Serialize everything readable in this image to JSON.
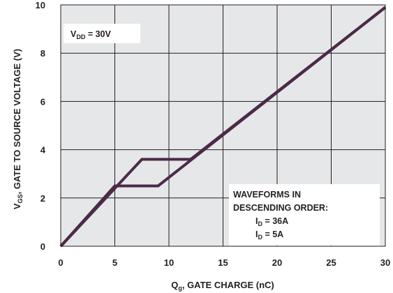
{
  "chart_data": {
    "type": "line",
    "title": "",
    "xlabel": {
      "main": "Q",
      "sub": "g",
      "rest": ", GATE CHARGE (nC)"
    },
    "ylabel": {
      "main": "V",
      "sub": "GS",
      "rest": ", GATE TO SOURCE VOLTAGE (V)"
    },
    "xlim": [
      0,
      30
    ],
    "ylim": [
      0,
      10
    ],
    "x_ticks": [
      0,
      5,
      10,
      15,
      20,
      25,
      30
    ],
    "y_ticks": [
      0,
      2,
      4,
      6,
      8,
      10
    ],
    "grid": true,
    "background": "#e6e7e8",
    "line_color": "#4b2a48",
    "series": [
      {
        "x": [
          0,
          5,
          5.5,
          9,
          30
        ],
        "y": [
          0,
          2.5,
          2.5,
          2.5,
          9.9
        ]
      },
      {
        "x": [
          0,
          7.5,
          12,
          30
        ],
        "y": [
          0,
          3.6,
          3.6,
          9.9
        ]
      }
    ],
    "annotations": {
      "vdd": {
        "main": "V",
        "sub": "DD",
        "rest": " = 30V"
      },
      "waveforms_line1": "WAVEFORMS IN",
      "waveforms_line2": "DESCENDING ORDER:",
      "id1": {
        "main": "I",
        "sub": "D",
        "rest": " = 36A"
      },
      "id2": {
        "main": "I",
        "sub": "D",
        "rest": " = 5A"
      }
    }
  }
}
